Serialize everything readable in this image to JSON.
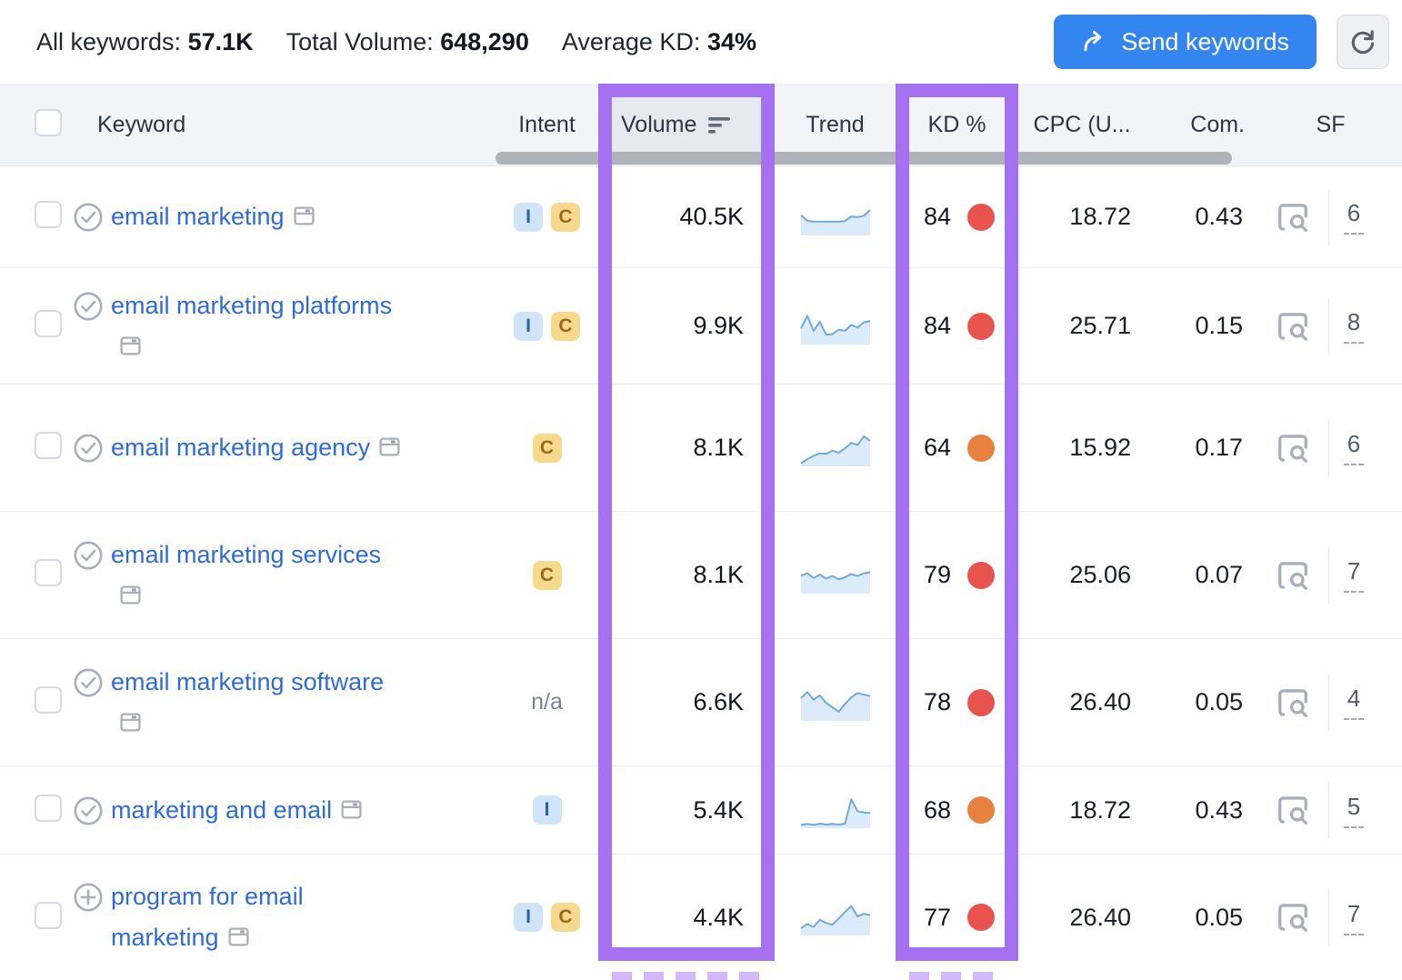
{
  "summary_bar": {
    "all_keywords_label": "All keywords:",
    "all_keywords_value": "57.1K",
    "total_volume_label": "Total Volume:",
    "total_volume_value": "648,290",
    "average_kd_label": "Average KD:",
    "average_kd_value": "34%",
    "send_button_label": "Send keywords"
  },
  "table": {
    "na_label": "n/a",
    "sorted_column": "volume",
    "sort_direction": "descending",
    "columns": {
      "keyword": "Keyword",
      "intent": "Intent",
      "volume": "Volume",
      "trend": "Trend",
      "kd": "KD %",
      "cpc": "CPC (U...",
      "com": "Com.",
      "sf": "SF"
    },
    "rows": [
      {
        "keyword": "email marketing",
        "status_icon": "check-circle",
        "intents": [
          "I",
          "C"
        ],
        "volume": "40.5K",
        "kd": "84",
        "kd_level": "red",
        "cpc": "18.72",
        "com": "0.43",
        "sf": "6",
        "trend": [
          0.62,
          0.45,
          0.42,
          0.42,
          0.42,
          0.42,
          0.42,
          0.44,
          0.58,
          0.56,
          0.6,
          0.78
        ]
      },
      {
        "keyword": "email marketing platforms",
        "status_icon": "check-circle",
        "intents": [
          "I",
          "C"
        ],
        "volume": "9.9K",
        "kd": "84",
        "kd_level": "red",
        "cpc": "25.71",
        "com": "0.15",
        "sf": "8",
        "trend": [
          0.5,
          0.88,
          0.42,
          0.7,
          0.3,
          0.32,
          0.45,
          0.42,
          0.6,
          0.52,
          0.68,
          0.72
        ]
      },
      {
        "keyword": "email marketing agency",
        "status_icon": "check-circle",
        "intents": [
          "C"
        ],
        "volume": "8.1K",
        "kd": "64",
        "kd_level": "orange",
        "cpc": "15.92",
        "com": "0.17",
        "sf": "6",
        "trend": [
          0.1,
          0.22,
          0.32,
          0.4,
          0.38,
          0.48,
          0.42,
          0.55,
          0.72,
          0.65,
          0.92,
          0.78
        ]
      },
      {
        "keyword": "email marketing services",
        "status_icon": "check-circle",
        "intents": [
          "C"
        ],
        "volume": "8.1K",
        "kd": "79",
        "kd_level": "red",
        "cpc": "25.06",
        "com": "0.07",
        "sf": "7",
        "trend": [
          0.55,
          0.62,
          0.48,
          0.58,
          0.46,
          0.54,
          0.44,
          0.5,
          0.6,
          0.54,
          0.62,
          0.66
        ]
      },
      {
        "keyword": "email marketing software",
        "status_icon": "check-circle",
        "intents": [],
        "volume": "6.6K",
        "kd": "78",
        "kd_level": "red",
        "cpc": "26.40",
        "com": "0.05",
        "sf": "4",
        "trend": [
          0.7,
          0.88,
          0.65,
          0.78,
          0.55,
          0.42,
          0.28,
          0.52,
          0.72,
          0.85,
          0.8,
          0.76
        ]
      },
      {
        "keyword": "marketing and email",
        "status_icon": "check-circle",
        "intents": [
          "I"
        ],
        "volume": "5.4K",
        "kd": "68",
        "kd_level": "orange",
        "cpc": "18.72",
        "com": "0.43",
        "sf": "5",
        "trend": [
          0.1,
          0.13,
          0.1,
          0.14,
          0.11,
          0.13,
          0.11,
          0.14,
          0.88,
          0.52,
          0.48,
          0.46
        ]
      },
      {
        "keyword": "program for email marketing",
        "status_icon": "plus-circle",
        "intents": [
          "I",
          "C"
        ],
        "volume": "4.4K",
        "kd": "77",
        "kd_level": "red",
        "cpc": "26.40",
        "com": "0.05",
        "sf": "7",
        "trend": [
          0.22,
          0.35,
          0.26,
          0.48,
          0.38,
          0.33,
          0.52,
          0.72,
          0.9,
          0.58,
          0.66,
          0.62
        ]
      }
    ]
  },
  "colors": {
    "accent_purple": "#a671f0",
    "link_blue": "#2e6bd9",
    "button_blue": "#3585f0",
    "kd_red": "#e8534e",
    "kd_orange": "#e8813f",
    "intent_i_bg": "#cfe4f9",
    "intent_i_text": "#27639d",
    "intent_c_bg": "#f6d98d",
    "intent_c_text": "#9c671c",
    "spark_line": "#70a9dd",
    "spark_fill": "#dcebf9"
  }
}
